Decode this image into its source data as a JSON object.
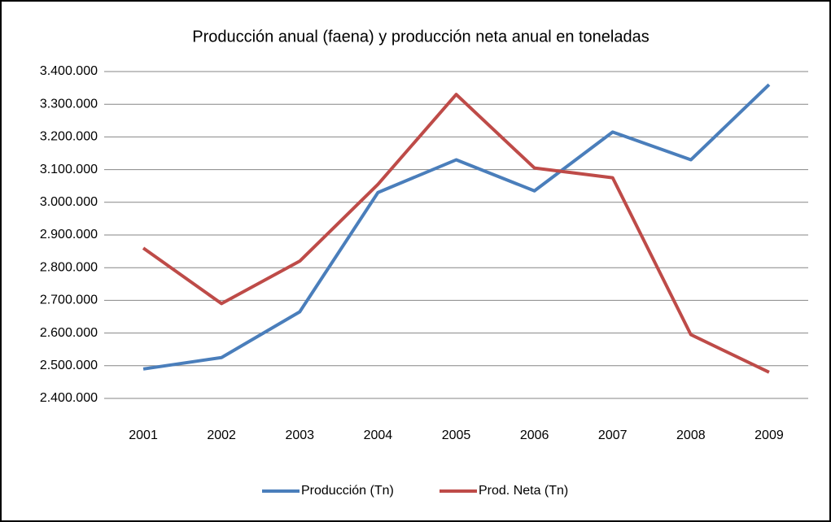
{
  "chart_data": {
    "type": "line",
    "title": "Producción anual (faena) y producción neta anual en toneladas",
    "categories": [
      "2001",
      "2002",
      "2003",
      "2004",
      "2005",
      "2006",
      "2007",
      "2008",
      "2009"
    ],
    "series": [
      {
        "name": "Producción (Tn)",
        "color": "#4a7ebb",
        "values": [
          2490000,
          2525000,
          2665000,
          3030000,
          3130000,
          3035000,
          3215000,
          3130000,
          3360000
        ]
      },
      {
        "name": "Prod. Neta (Tn)",
        "color": "#be4b48",
        "values": [
          2860000,
          2690000,
          2820000,
          3055000,
          3330000,
          3105000,
          3075000,
          2595000,
          2480000
        ]
      }
    ],
    "ylim": [
      2400000,
      3400000
    ],
    "yticks": [
      {
        "value": 2400000,
        "label": "2.400.000"
      },
      {
        "value": 2500000,
        "label": "2.500.000"
      },
      {
        "value": 2600000,
        "label": "2.600.000"
      },
      {
        "value": 2700000,
        "label": "2.700.000"
      },
      {
        "value": 2800000,
        "label": "2.800.000"
      },
      {
        "value": 2900000,
        "label": "2.900.000"
      },
      {
        "value": 3000000,
        "label": "3.000.000"
      },
      {
        "value": 3100000,
        "label": "3.100.000"
      },
      {
        "value": 3200000,
        "label": "3.200.000"
      },
      {
        "value": 3300000,
        "label": "3.300.000"
      },
      {
        "value": 3400000,
        "label": "3.400.000"
      }
    ],
    "grid": true,
    "legend": "bottom"
  }
}
